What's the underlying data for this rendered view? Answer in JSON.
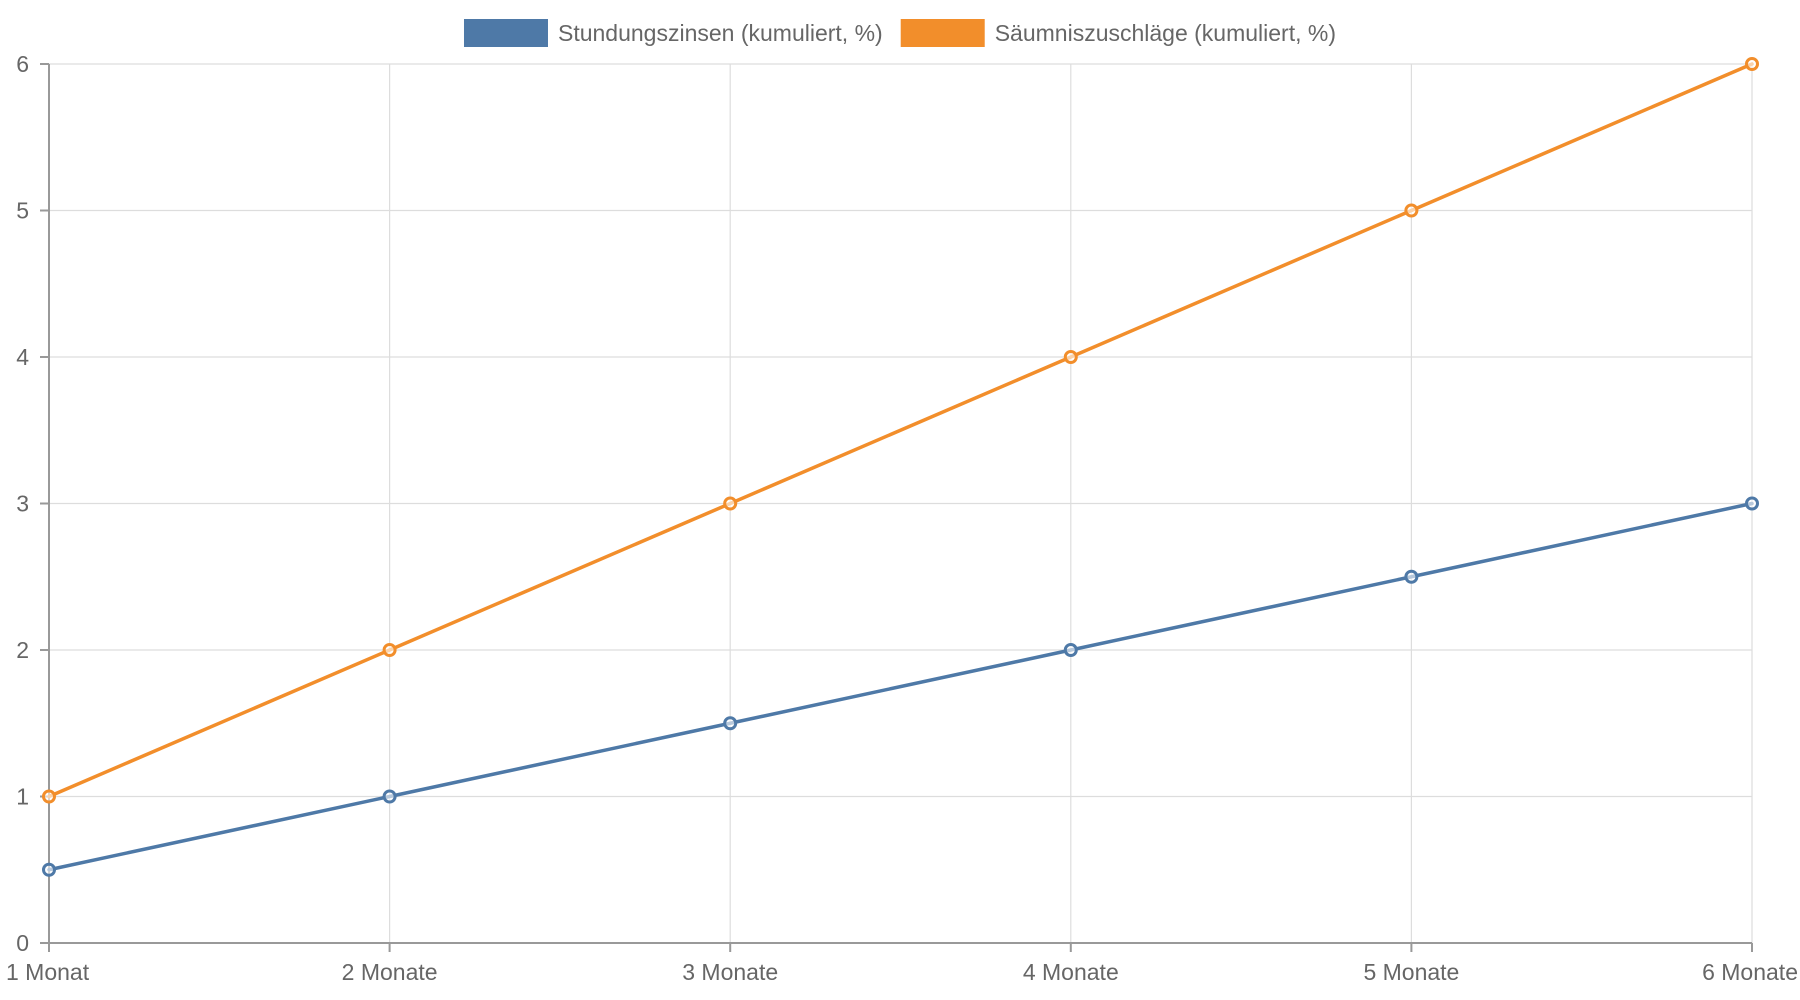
{
  "chart_data": {
    "type": "line",
    "title": "",
    "xlabel": "",
    "ylabel": "",
    "categories": [
      "1 Monat",
      "2 Monate",
      "3 Monate",
      "4 Monate",
      "5 Monate",
      "6 Monate"
    ],
    "ylim": [
      0,
      6
    ],
    "yticks": [
      "0",
      "1",
      "2",
      "3",
      "4",
      "5",
      "6"
    ],
    "grid": true,
    "legend_position": "top-center",
    "series": [
      {
        "name": "Stundungszinsen (kumuliert, %)",
        "color": "#4e79a7",
        "values": [
          0.5,
          1,
          1.5,
          2,
          2.5,
          3
        ]
      },
      {
        "name": "Säumniszuschläge (kumuliert, %)",
        "color": "#f28e2b",
        "values": [
          1,
          2,
          3,
          4,
          5,
          6
        ]
      }
    ]
  }
}
